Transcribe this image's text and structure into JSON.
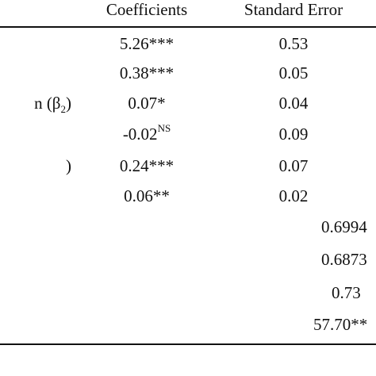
{
  "table": {
    "headers": {
      "coefficients": "Coefficients",
      "standard_error": "Standard Error"
    },
    "rows": [
      {
        "label": "",
        "coef": "5.26",
        "sig": "***",
        "se": "0.53"
      },
      {
        "label": "",
        "coef": "0.38",
        "sig": "***",
        "se": "0.05"
      },
      {
        "label": "n (β",
        "label_sub": "2",
        "label_end": ")",
        "coef": "0.07",
        "sig": "*",
        "se": "0.04"
      },
      {
        "label": "",
        "coef": "-0.02",
        "sig": "NS",
        "se": "0.09"
      },
      {
        "label": ")",
        "coef": "0.24",
        "sig": "***",
        "se": "0.07"
      },
      {
        "label": "",
        "coef": "0.06",
        "sig": "**",
        "se": "0.02"
      }
    ],
    "summary": [
      {
        "value": "0.6994"
      },
      {
        "value": "0.6873"
      },
      {
        "value": "0.73"
      },
      {
        "value": "57.70**"
      }
    ]
  }
}
